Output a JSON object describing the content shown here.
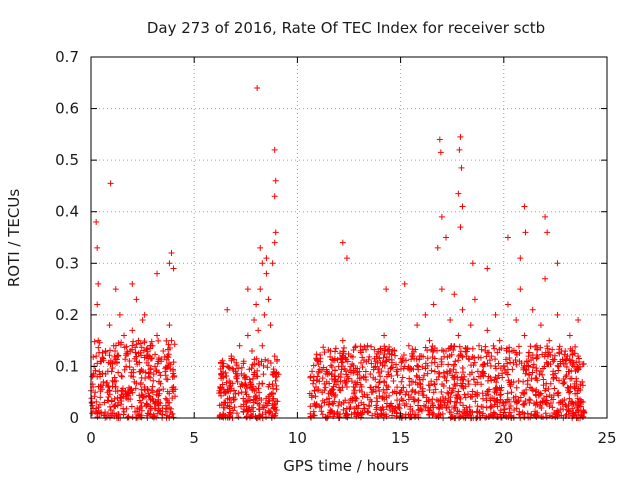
{
  "chart_data": {
    "type": "scatter",
    "title": "Day 273 of 2016, Rate Of TEC Index for receiver sctb",
    "xlabel": "GPS time / hours",
    "ylabel": "ROTI / TECUs",
    "xlim": [
      0,
      25
    ],
    "ylim": [
      0,
      0.7
    ],
    "xticks": [
      0,
      5,
      10,
      15,
      20,
      25
    ],
    "yticks": [
      0,
      0.1,
      0.2,
      0.3,
      0.4,
      0.5,
      0.6,
      0.7
    ],
    "grid": true,
    "marker": "+",
    "color": "#ff0000",
    "series": [
      {
        "name": "ROTI",
        "x": [
          0.05,
          0.1,
          0.15,
          0.2,
          0.25,
          0.3,
          0.35,
          0.4,
          0.45,
          0.5,
          0.6,
          0.7,
          0.8,
          0.9,
          1.0,
          1.1,
          1.2,
          1.3,
          1.4,
          1.5,
          1.6,
          1.7,
          1.8,
          1.9,
          2.0,
          2.1,
          2.2,
          2.3,
          2.4,
          2.5,
          2.6,
          2.7,
          2.8,
          2.9,
          3.0,
          3.1,
          3.2,
          3.3,
          3.4,
          3.5,
          3.6,
          3.7,
          3.8,
          3.9,
          4.0,
          0.25,
          0.3,
          0.35,
          0.95,
          0.3,
          1.2,
          2.0,
          2.2,
          2.6,
          3.2,
          3.8,
          3.9,
          4.0,
          6.3,
          6.4,
          6.5,
          6.6,
          6.7,
          6.8,
          6.9,
          7.0,
          7.1,
          7.2,
          7.3,
          7.4,
          7.5,
          7.6,
          7.7,
          7.8,
          7.9,
          8.0,
          8.1,
          8.2,
          8.3,
          8.4,
          8.5,
          8.6,
          8.7,
          8.8,
          8.9,
          9.0,
          8.05,
          8.9,
          8.95,
          8.9,
          8.95,
          8.9,
          8.5,
          8.3,
          6.6,
          7.6,
          8.2,
          10.7,
          10.8,
          10.9,
          11.0,
          11.2,
          11.4,
          11.6,
          11.8,
          12.0,
          12.2,
          12.4,
          12.6,
          12.8,
          13.0,
          13.2,
          13.4,
          13.6,
          13.8,
          14.0,
          14.2,
          14.4,
          14.6,
          14.8,
          15.0,
          15.2,
          15.4,
          15.6,
          15.8,
          16.0,
          16.2,
          16.4,
          16.6,
          16.8,
          17.0,
          17.2,
          17.4,
          17.6,
          17.8,
          18.0,
          18.2,
          18.4,
          18.6,
          18.8,
          19.0,
          19.2,
          19.4,
          19.6,
          19.8,
          20.0,
          20.2,
          20.4,
          20.6,
          20.8,
          21.0,
          21.2,
          21.4,
          21.6,
          21.8,
          22.0,
          22.2,
          22.4,
          22.6,
          22.8,
          23.0,
          23.2,
          23.4,
          23.6,
          23.8,
          16.9,
          16.95,
          17.0,
          17.9,
          17.85,
          17.95,
          17.8,
          17.9,
          18.0,
          17.2,
          21.0,
          21.05,
          22.0,
          22.1,
          20.2,
          12.2,
          12.4,
          14.3,
          15.2,
          16.8,
          18.5,
          19.2,
          20.8,
          22.6,
          23.6
        ],
        "y": [
          0.03,
          0.06,
          0.1,
          0.05,
          0.12,
          0.08,
          0.15,
          0.09,
          0.04,
          0.11,
          0.07,
          0.13,
          0.05,
          0.18,
          0.09,
          0.14,
          0.06,
          0.12,
          0.2,
          0.08,
          0.16,
          0.1,
          0.05,
          0.13,
          0.17,
          0.07,
          0.11,
          0.15,
          0.09,
          0.19,
          0.06,
          0.12,
          0.08,
          0.14,
          0.05,
          0.1,
          0.16,
          0.07,
          0.11,
          0.13,
          0.09,
          0.12,
          0.18,
          0.15,
          0.06,
          0.38,
          0.33,
          0.26,
          0.455,
          0.22,
          0.25,
          0.26,
          0.23,
          0.2,
          0.28,
          0.3,
          0.32,
          0.29,
          0.05,
          0.08,
          0.03,
          0.1,
          0.06,
          0.12,
          0.04,
          0.09,
          0.07,
          0.14,
          0.05,
          0.11,
          0.08,
          0.16,
          0.06,
          0.13,
          0.19,
          0.22,
          0.17,
          0.25,
          0.14,
          0.2,
          0.28,
          0.23,
          0.18,
          0.3,
          0.12,
          0.08,
          0.64,
          0.52,
          0.46,
          0.43,
          0.36,
          0.34,
          0.31,
          0.3,
          0.21,
          0.25,
          0.33,
          0.04,
          0.08,
          0.06,
          0.11,
          0.05,
          0.09,
          0.13,
          0.07,
          0.1,
          0.15,
          0.06,
          0.12,
          0.04,
          0.09,
          0.08,
          0.14,
          0.05,
          0.11,
          0.07,
          0.16,
          0.06,
          0.13,
          0.09,
          0.05,
          0.1,
          0.14,
          0.07,
          0.18,
          0.12,
          0.2,
          0.15,
          0.22,
          0.1,
          0.25,
          0.13,
          0.19,
          0.24,
          0.16,
          0.21,
          0.12,
          0.18,
          0.23,
          0.14,
          0.09,
          0.17,
          0.12,
          0.2,
          0.15,
          0.1,
          0.22,
          0.13,
          0.19,
          0.25,
          0.16,
          0.12,
          0.21,
          0.14,
          0.18,
          0.27,
          0.15,
          0.11,
          0.2,
          0.13,
          0.08,
          0.16,
          0.1,
          0.12,
          0.07,
          0.54,
          0.515,
          0.39,
          0.545,
          0.52,
          0.485,
          0.435,
          0.37,
          0.41,
          0.35,
          0.41,
          0.36,
          0.39,
          0.36,
          0.35,
          0.34,
          0.31,
          0.25,
          0.26,
          0.33,
          0.3,
          0.29,
          0.31,
          0.3,
          0.19
        ],
        "dense_bands": [
          {
            "x_range": [
              0,
              4.1
            ],
            "y_range": [
              0,
              0.15
            ]
          },
          {
            "x_range": [
              6.2,
              9.1
            ],
            "y_range": [
              0,
              0.12
            ]
          },
          {
            "x_range": [
              10.6,
              23.9
            ],
            "y_range": [
              0,
              0.14
            ]
          }
        ]
      }
    ]
  }
}
